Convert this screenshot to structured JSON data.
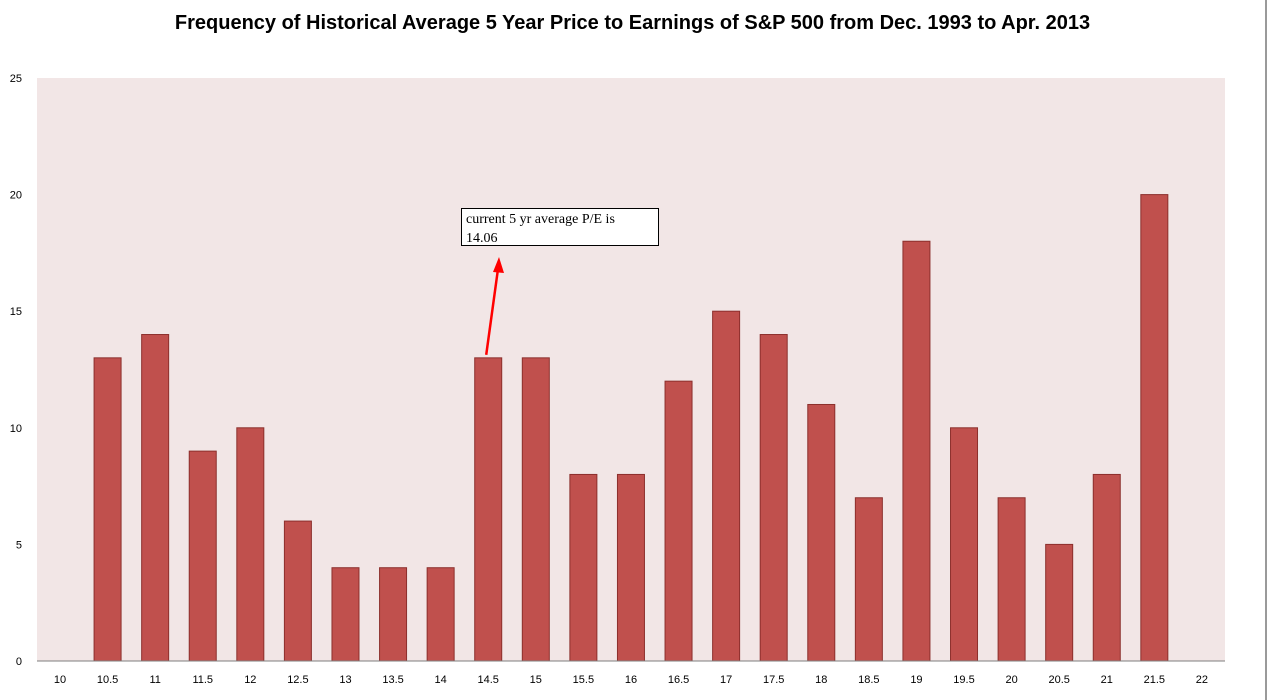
{
  "chart_data": {
    "type": "bar",
    "title": "Frequency of Historical Average 5 Year Price to Earnings of S&P 500 from Dec. 1993 to Apr. 2013",
    "xlabel": "",
    "ylabel": "",
    "categories": [
      "10",
      "10.5",
      "11",
      "11.5",
      "12",
      "12.5",
      "13",
      "13.5",
      "14",
      "14.5",
      "15",
      "15.5",
      "16",
      "16.5",
      "17",
      "17.5",
      "18",
      "18.5",
      "19",
      "19.5",
      "20",
      "20.5",
      "21",
      "21.5",
      "22"
    ],
    "values": [
      0,
      13,
      14,
      9,
      10,
      6,
      4,
      4,
      4,
      13,
      13,
      8,
      8,
      12,
      15,
      14,
      11,
      7,
      18,
      10,
      7,
      5,
      8,
      20,
      0
    ],
    "ylim": [
      0,
      25
    ],
    "yticks": [
      "0",
      "5",
      "10",
      "15",
      "20",
      "25"
    ],
    "grid": false,
    "legend": "none",
    "annotation": {
      "line1": "current 5 yr average P/E is",
      "line2": "14.06",
      "arrow_points_to": "14.5"
    }
  },
  "colors": {
    "bar_fill": "#c0504d",
    "bar_stroke": "#8c2f2c",
    "plot_background": "#f2e6e6",
    "arrow": "#ff0000"
  }
}
